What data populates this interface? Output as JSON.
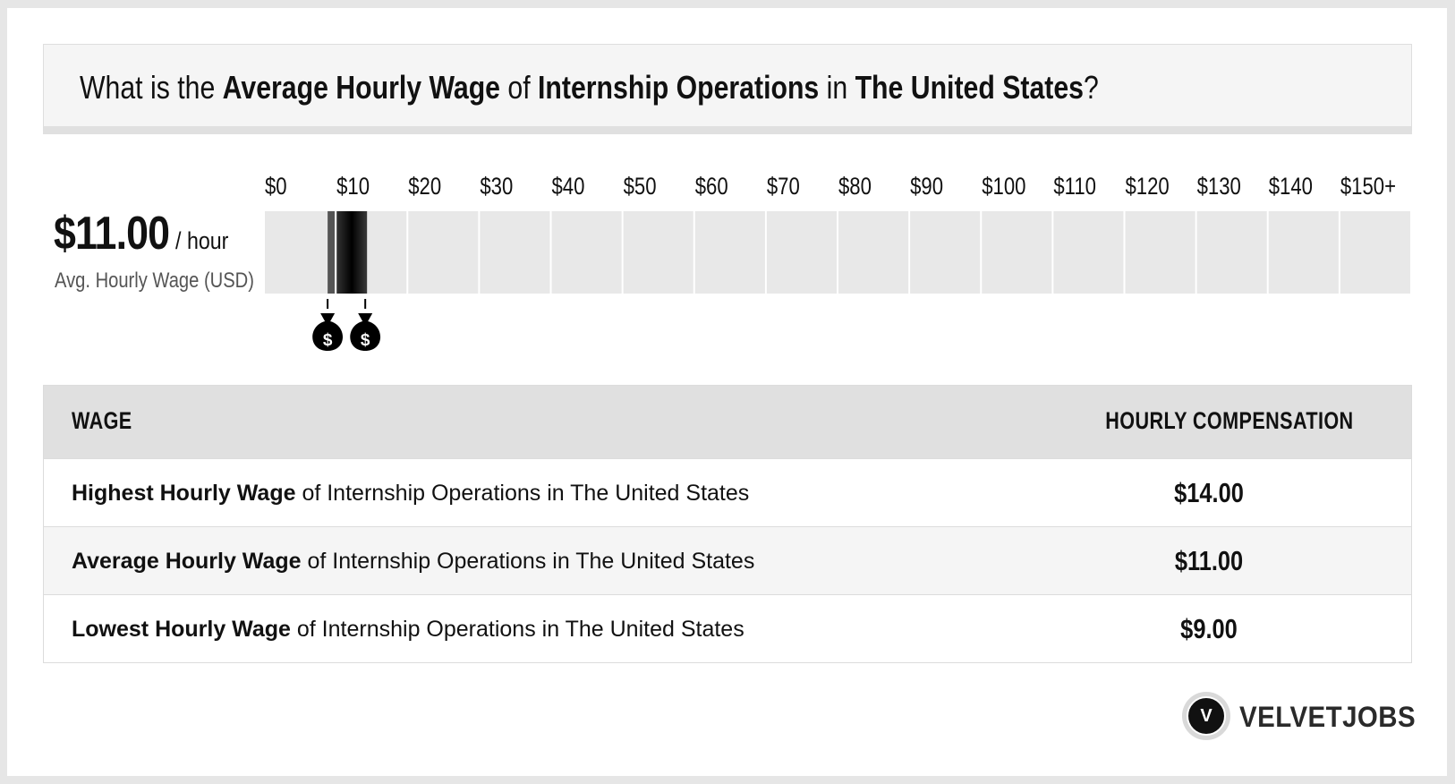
{
  "title": {
    "p1": "What is the ",
    "b1": "Average Hourly Wage",
    "p2": " of ",
    "b2": "Internship Operations",
    "p3": " in ",
    "b3": "The United States",
    "p4": "?"
  },
  "summary": {
    "value": "$11.00",
    "unit": "/ hour",
    "label": "Avg. Hourly Wage (USD)"
  },
  "chart_data": {
    "type": "bar",
    "categories": [
      "$0",
      "$10",
      "$20",
      "$30",
      "$40",
      "$50",
      "$60",
      "$70",
      "$80",
      "$90",
      "$100",
      "$110",
      "$120",
      "$130",
      "$140",
      "$150+"
    ],
    "xlim": [
      0,
      160
    ],
    "range": {
      "low": 9,
      "avg": 11,
      "high": 14
    },
    "markers": [
      {
        "value": 9,
        "label": "$"
      },
      {
        "value": 14,
        "label": "$"
      }
    ],
    "colors": {
      "track": "#e8e8e8",
      "bar": "#111111",
      "bar_light": "#555555",
      "marker": "#000000"
    }
  },
  "table": {
    "header": {
      "left": "WAGE",
      "right": "HOURLY COMPENSATION"
    },
    "rows": [
      {
        "bold": "Highest Hourly Wage",
        "rest": " of Internship Operations in The United States",
        "value": "$14.00"
      },
      {
        "bold": "Average Hourly Wage",
        "rest": " of Internship Operations in The United States",
        "value": "$11.00"
      },
      {
        "bold": "Lowest Hourly Wage",
        "rest": " of Internship Operations in The United States",
        "value": "$9.00"
      }
    ]
  },
  "brand": {
    "logo_letter": "V",
    "name": "VELVETJOBS"
  }
}
